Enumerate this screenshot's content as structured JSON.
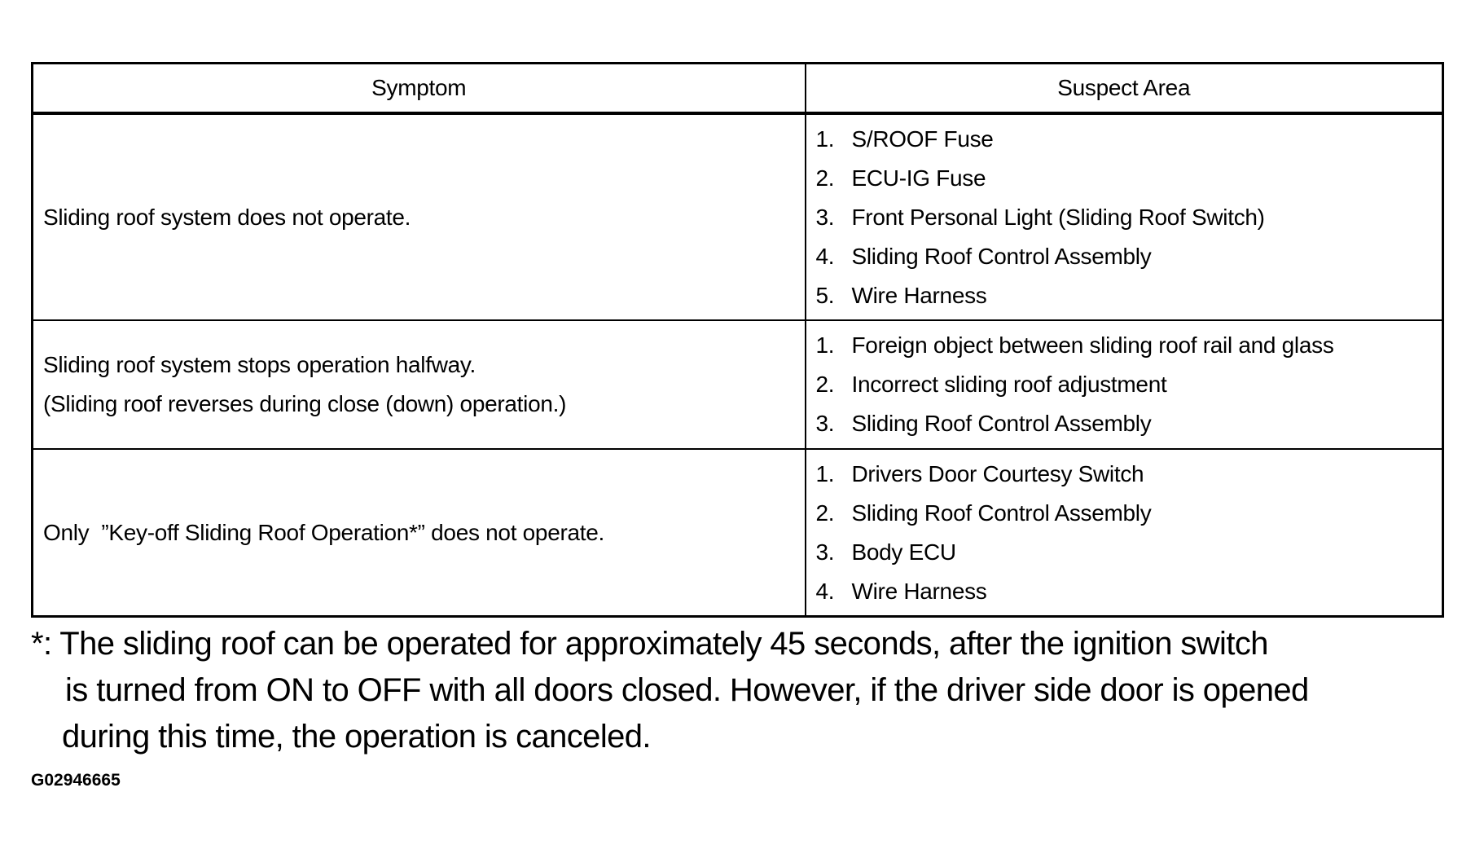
{
  "table": {
    "headers": [
      "Symptom",
      "Suspect Area"
    ],
    "rows": [
      {
        "symptom": [
          "Sliding roof system does not operate."
        ],
        "suspects": [
          {
            "n": "1.",
            "t": "S/ROOF Fuse"
          },
          {
            "n": "2.",
            "t": "ECU-IG Fuse"
          },
          {
            "n": "3.",
            "t": "Front Personal Light (Sliding Roof Switch)"
          },
          {
            "n": "4.",
            "t": "Sliding Roof Control Assembly"
          },
          {
            "n": "5.",
            "t": "Wire Harness"
          }
        ]
      },
      {
        "symptom": [
          "Sliding roof system stops operation halfway.",
          "(Sliding roof reverses during close (down) operation.)"
        ],
        "suspects": [
          {
            "n": "1.",
            "t": "Foreign object between sliding roof rail and glass"
          },
          {
            "n": "2.",
            "t": "Incorrect sliding roof adjustment"
          },
          {
            "n": "3.",
            "t": "Sliding Roof Control Assembly"
          }
        ]
      },
      {
        "symptom": [
          "Only  ”Key-off Sliding Roof Operation*” does not operate."
        ],
        "suspects": [
          {
            "n": "1.",
            "t": "Drivers Door Courtesy Switch"
          },
          {
            "n": "2.",
            "t": "Sliding Roof Control Assembly"
          },
          {
            "n": "3.",
            "t": "Body ECU"
          },
          {
            "n": "4.",
            "t": "Wire Harness"
          }
        ]
      }
    ]
  },
  "footnote": {
    "marker": "*:",
    "lines": [
      "The sliding roof can be operated for approximately 45 seconds, after the ignition switch",
      "is turned from ON to OFF with all doors closed. However, if the driver side door is opened",
      "during this time, the operation is canceled."
    ]
  },
  "figure_code": "G02946665"
}
